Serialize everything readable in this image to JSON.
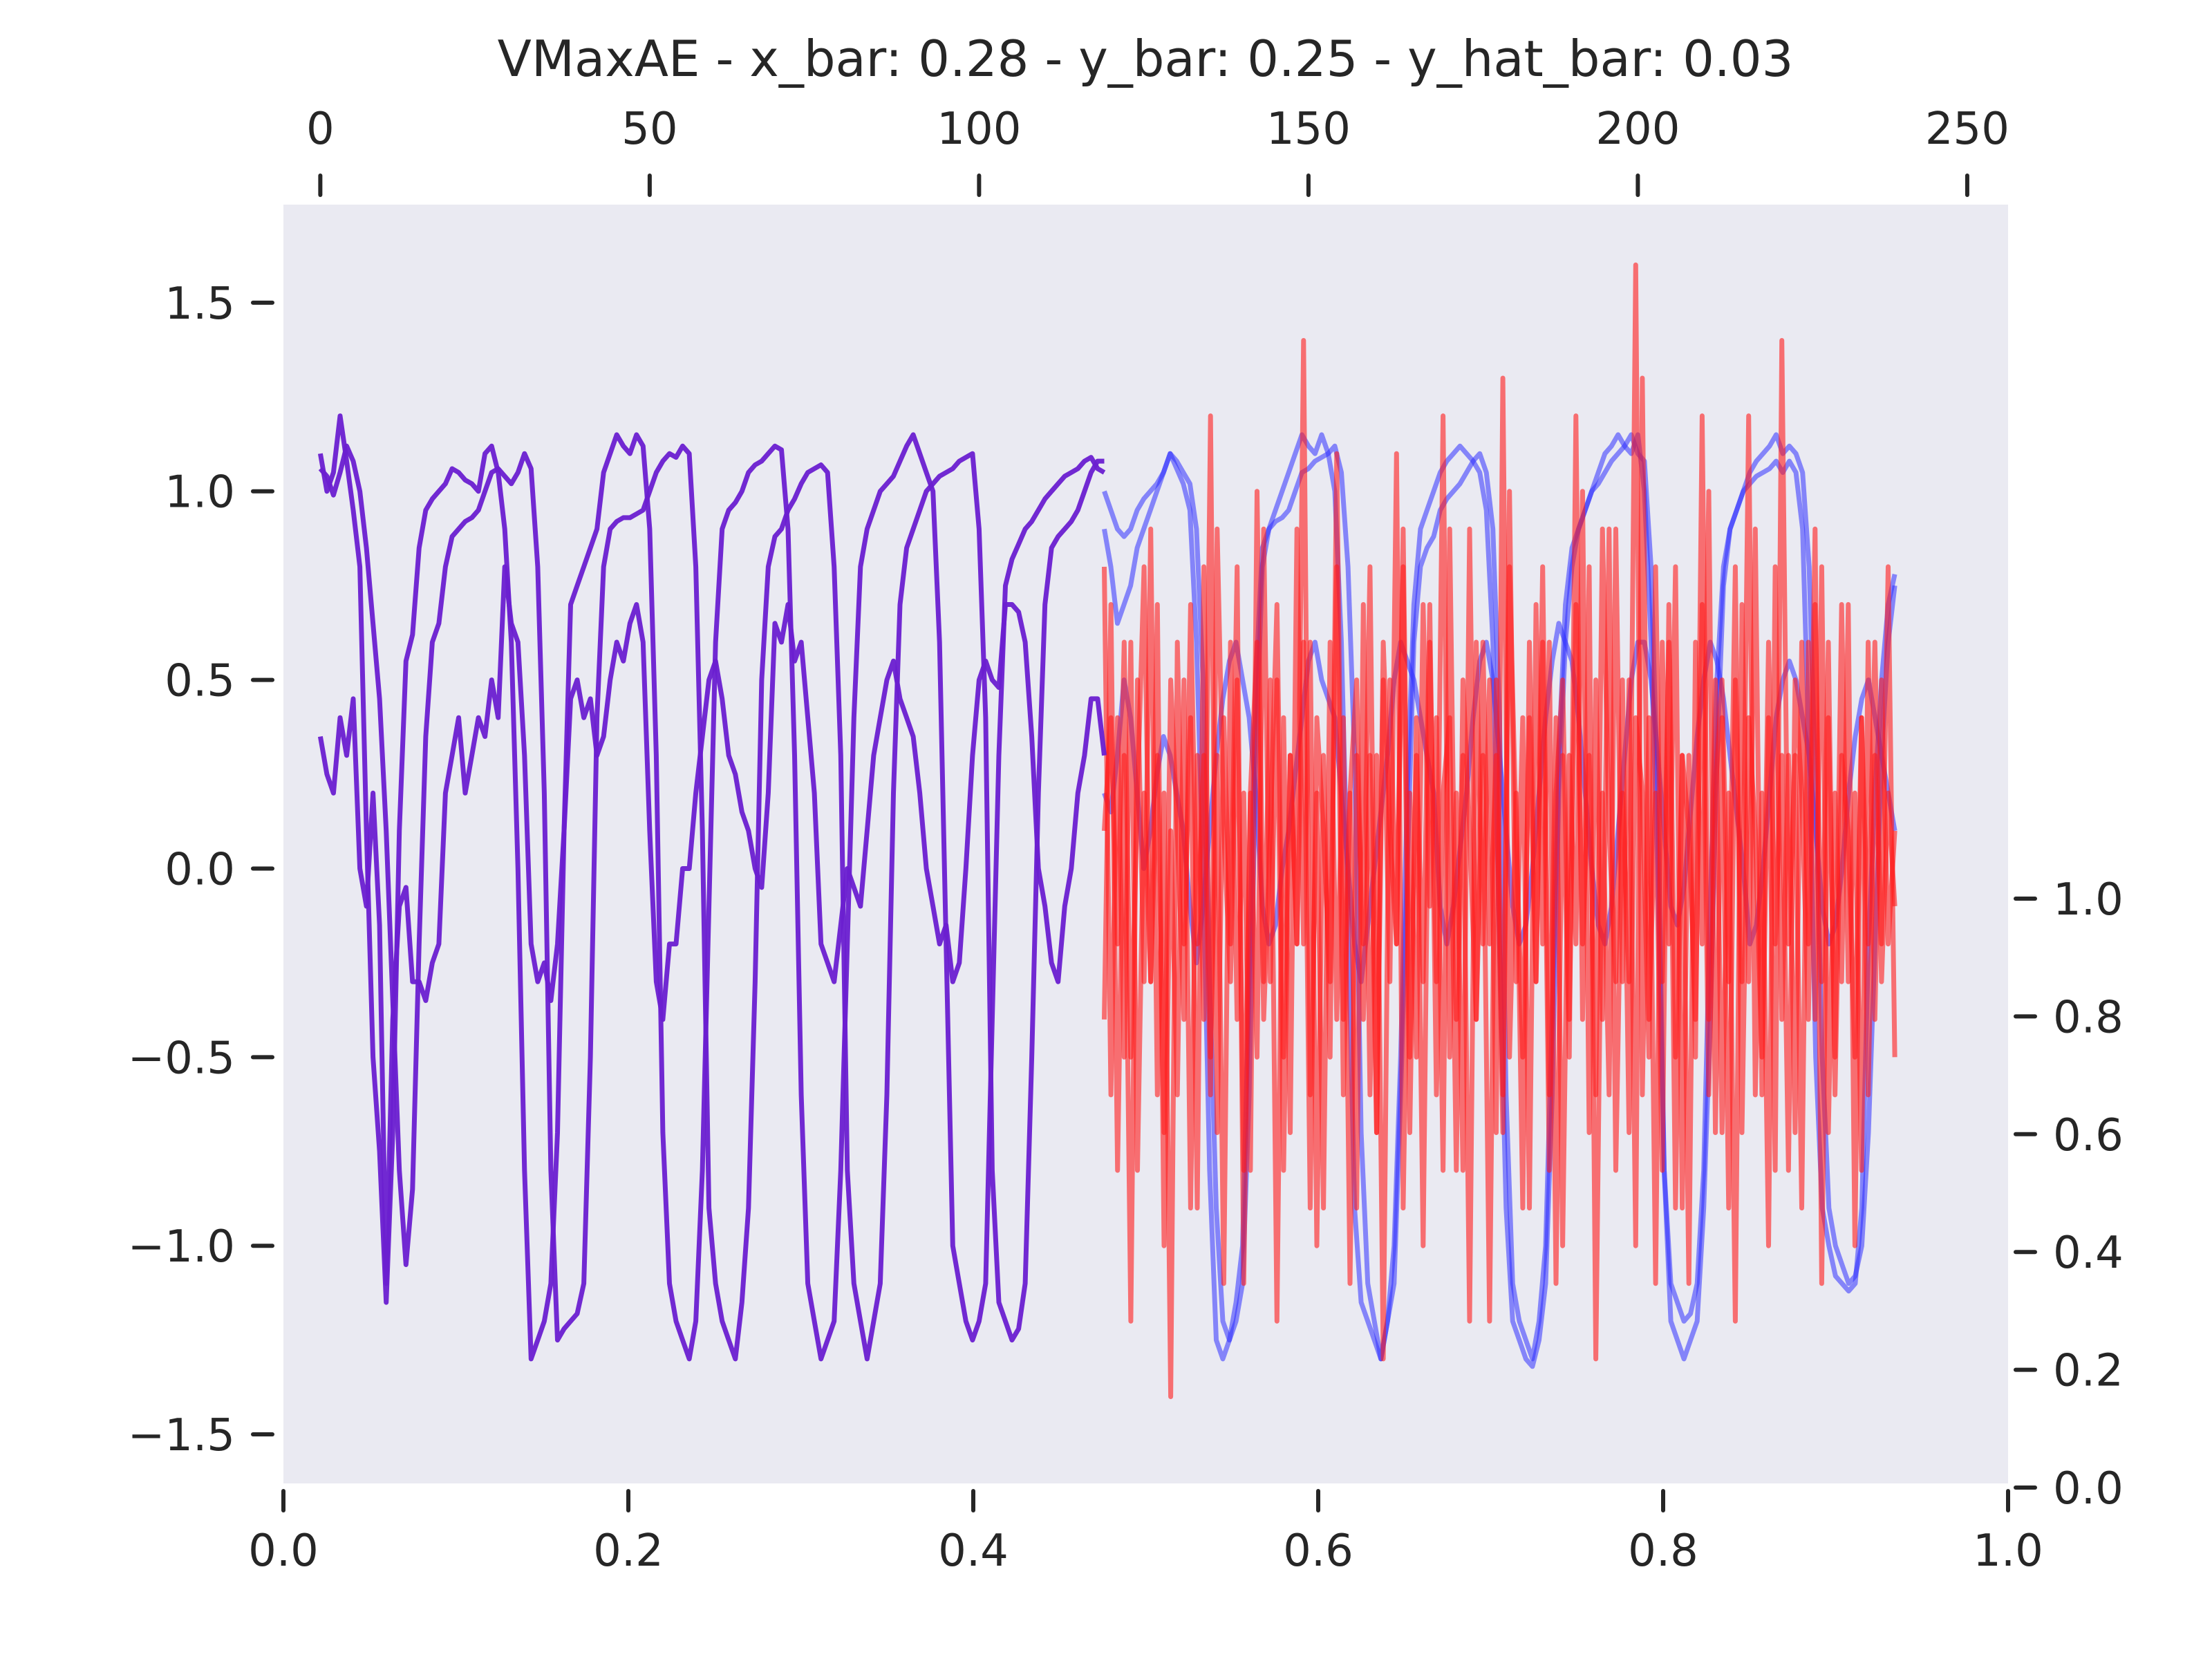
{
  "chart_data": {
    "type": "line",
    "title": "VMaxAE - x_bar: 0.28 - y_bar: 0.25 - y_hat_bar: 0.03",
    "xlabel": "",
    "ylabel": "",
    "grid": false,
    "background": "#eaeaf2",
    "colors": {
      "input": "#6a1fd0",
      "target": "#3030ff",
      "recon": "#ff1a1a"
    },
    "axes": {
      "bottom_x": {
        "range": [
          0.0,
          1.0
        ],
        "ticks": [
          "0.0",
          "0.2",
          "0.4",
          "0.6",
          "0.8",
          "1.0"
        ]
      },
      "top_x": {
        "range": [
          -5.6,
          256.2
        ],
        "ticks": [
          "0",
          "50",
          "100",
          "150",
          "200",
          "250"
        ]
      },
      "left_y": {
        "range": [
          -1.63,
          1.76
        ],
        "ticks": [
          "1.5",
          "1.0",
          "0.5",
          "0.0",
          "−0.5",
          "−1.0",
          "−1.5"
        ]
      },
      "right_y": {
        "range": [
          0.0,
          1.0
        ],
        "ticks": [
          "1.0",
          "0.8",
          "0.6",
          "0.4",
          "0.2",
          "0.0"
        ]
      }
    },
    "series": [
      {
        "role": "input",
        "x_range": [
          0,
          119
        ],
        "values": [
          1.06,
          1.04,
          0.99,
          1.05,
          1.12,
          1.08,
          1.0,
          0.85,
          0.65,
          0.45,
          0.1,
          -0.35,
          -0.8,
          -1.05,
          -0.85,
          -0.2,
          0.35,
          0.6,
          0.65,
          0.8,
          0.88,
          0.9,
          0.92,
          0.93,
          0.95,
          1.0,
          1.05,
          1.06,
          1.04,
          1.02,
          1.05,
          1.1,
          1.06,
          0.8,
          0.2,
          -0.8,
          -1.25,
          -1.22,
          -1.2,
          -1.18,
          -1.1,
          -0.5,
          0.4,
          0.8,
          0.9,
          0.92,
          0.93,
          0.93,
          0.94,
          0.95,
          1.0,
          1.05,
          1.08,
          1.1,
          1.09,
          1.12,
          1.1,
          0.8,
          0.1,
          -0.9,
          -1.1,
          -1.2,
          -1.25,
          -1.3,
          -1.15,
          -0.9,
          -0.3,
          0.5,
          0.8,
          0.88,
          0.9,
          0.95,
          0.98,
          1.02,
          1.05,
          1.06,
          1.07,
          1.05,
          0.8,
          0.3,
          -0.8,
          -1.1,
          -1.2,
          -1.3,
          -1.2,
          -1.1,
          -0.6,
          0.2,
          0.7,
          0.85,
          0.9,
          0.95,
          1.0,
          1.02,
          1.04,
          1.05,
          1.06,
          1.08,
          1.09,
          1.1,
          0.9,
          0.4,
          -0.8,
          -1.15,
          -1.2,
          -1.25,
          -1.22,
          -1.1,
          -0.5,
          0.2,
          0.7,
          0.85,
          0.88,
          0.9,
          0.92,
          0.95,
          1.0,
          1.05,
          1.08,
          1.08
        ]
      },
      {
        "role": "input",
        "x_range": [
          0,
          119
        ],
        "values": [
          1.1,
          1.0,
          1.05,
          1.2,
          1.08,
          0.95,
          0.8,
          0.1,
          -0.5,
          -0.75,
          -1.15,
          -0.7,
          0.1,
          0.55,
          0.62,
          0.85,
          0.95,
          0.98,
          1.0,
          1.02,
          1.06,
          1.05,
          1.03,
          1.02,
          1.0,
          1.1,
          1.12,
          1.05,
          0.9,
          0.6,
          0.0,
          -0.8,
          -1.3,
          -1.25,
          -1.2,
          -1.1,
          -0.7,
          0.1,
          0.7,
          0.75,
          0.8,
          0.85,
          0.9,
          1.05,
          1.1,
          1.15,
          1.12,
          1.1,
          1.15,
          1.12,
          0.9,
          0.3,
          -0.7,
          -1.1,
          -1.2,
          -1.25,
          -1.3,
          -1.2,
          -0.8,
          -0.1,
          0.6,
          0.9,
          0.95,
          0.97,
          1.0,
          1.05,
          1.07,
          1.08,
          1.1,
          1.12,
          1.11,
          0.9,
          0.3,
          -0.6,
          -1.1,
          -1.2,
          -1.3,
          -1.25,
          -1.2,
          -0.8,
          -0.2,
          0.4,
          0.8,
          0.9,
          0.95,
          1.0,
          1.02,
          1.04,
          1.08,
          1.12,
          1.15,
          1.1,
          1.05,
          1.0,
          0.6,
          -0.2,
          -1.0,
          -1.1,
          -1.2,
          -1.25,
          -1.2,
          -1.1,
          -0.4,
          0.3,
          0.75,
          0.82,
          0.86,
          0.9,
          0.92,
          0.95,
          0.98,
          1.0,
          1.02,
          1.04,
          1.05,
          1.06,
          1.08,
          1.09,
          1.06,
          1.05
        ]
      },
      {
        "role": "input",
        "x_range": [
          0,
          119
        ],
        "values": [
          0.35,
          0.25,
          0.2,
          0.4,
          0.3,
          0.45,
          0.0,
          -0.1,
          0.2,
          -0.15,
          -1.1,
          -0.4,
          -0.1,
          -0.05,
          -0.3,
          -0.3,
          -0.35,
          -0.25,
          -0.2,
          0.2,
          0.3,
          0.4,
          0.2,
          0.3,
          0.4,
          0.35,
          0.5,
          0.4,
          0.8,
          0.65,
          0.6,
          0.3,
          -0.2,
          -0.3,
          -0.25,
          -0.35,
          -0.2,
          0.1,
          0.45,
          0.5,
          0.4,
          0.45,
          0.3,
          0.35,
          0.5,
          0.6,
          0.55,
          0.65,
          0.7,
          0.6,
          0.1,
          -0.3,
          -0.4,
          -0.2,
          -0.2,
          0.0,
          0.0,
          0.2,
          0.35,
          0.5,
          0.55,
          0.45,
          0.3,
          0.25,
          0.15,
          0.1,
          0.0,
          -0.05,
          0.2,
          0.65,
          0.6,
          0.7,
          0.55,
          0.6,
          0.4,
          0.2,
          -0.2,
          -0.25,
          -0.3,
          -0.15,
          0.0,
          -0.05,
          -0.1,
          0.1,
          0.3,
          0.4,
          0.5,
          0.55,
          0.45,
          0.4,
          0.35,
          0.2,
          0.0,
          -0.1,
          -0.2,
          -0.15,
          -0.3,
          -0.25,
          0.0,
          0.3,
          0.5,
          0.55,
          0.5,
          0.48,
          0.7,
          0.7,
          0.68,
          0.6,
          0.35,
          0.0,
          -0.1,
          -0.25,
          -0.3,
          -0.1,
          0.0,
          0.2,
          0.3,
          0.45,
          0.45,
          0.3
        ]
      },
      {
        "role": "target",
        "x_range": [
          119,
          239
        ],
        "values": [
          1.0,
          0.95,
          0.9,
          0.88,
          0.9,
          0.95,
          0.98,
          1.0,
          1.02,
          1.05,
          1.1,
          1.08,
          1.05,
          1.02,
          0.9,
          0.5,
          -0.3,
          -0.9,
          -1.2,
          -1.25,
          -1.2,
          -1.1,
          -0.6,
          0.3,
          0.8,
          0.9,
          0.92,
          0.93,
          0.95,
          1.0,
          1.05,
          1.06,
          1.08,
          1.09,
          1.1,
          1.12,
          1.05,
          0.8,
          0.3,
          -0.7,
          -1.1,
          -1.2,
          -1.3,
          -1.2,
          -1.1,
          -0.6,
          0.0,
          0.6,
          0.8,
          0.85,
          0.88,
          0.95,
          0.98,
          1.0,
          1.02,
          1.05,
          1.08,
          1.1,
          1.05,
          0.9,
          0.4,
          -0.6,
          -1.1,
          -1.2,
          -1.25,
          -1.3,
          -1.2,
          -1.0,
          -0.4,
          0.3,
          0.7,
          0.85,
          0.9,
          0.95,
          1.0,
          1.02,
          1.05,
          1.08,
          1.1,
          1.12,
          1.15,
          1.1,
          1.08,
          0.8,
          0.2,
          -0.8,
          -1.1,
          -1.15,
          -1.2,
          -1.18,
          -1.1,
          -0.8,
          -0.1,
          0.5,
          0.8,
          0.9,
          0.95,
          1.0,
          1.02,
          1.04,
          1.05,
          1.06,
          1.08,
          1.05,
          1.08,
          1.05,
          0.9,
          0.3,
          -0.5,
          -0.9,
          -1.0,
          -1.08,
          -1.1,
          -1.12,
          -1.1,
          -0.9,
          -0.2,
          0.2,
          0.5,
          0.7,
          0.78
        ]
      },
      {
        "role": "target",
        "x_range": [
          119,
          239
        ],
        "values": [
          0.9,
          0.8,
          0.65,
          0.7,
          0.75,
          0.85,
          0.9,
          0.95,
          1.0,
          1.05,
          1.1,
          1.06,
          1.02,
          0.95,
          0.6,
          0.0,
          -0.8,
          -1.25,
          -1.3,
          -1.25,
          -1.15,
          -1.0,
          -0.3,
          0.5,
          0.85,
          0.9,
          0.95,
          1.0,
          1.05,
          1.1,
          1.15,
          1.12,
          1.1,
          1.15,
          1.1,
          1.0,
          0.6,
          -0.1,
          -0.9,
          -1.15,
          -1.2,
          -1.25,
          -1.3,
          -1.2,
          -1.0,
          -0.5,
          0.2,
          0.7,
          0.9,
          0.95,
          1.0,
          1.05,
          1.08,
          1.1,
          1.12,
          1.1,
          1.08,
          1.05,
          0.95,
          0.6,
          -0.2,
          -0.9,
          -1.2,
          -1.25,
          -1.3,
          -1.32,
          -1.25,
          -1.1,
          -0.6,
          0.2,
          0.6,
          0.8,
          0.9,
          0.95,
          1.0,
          1.05,
          1.1,
          1.12,
          1.15,
          1.12,
          1.1,
          1.15,
          1.0,
          0.6,
          0.0,
          -0.8,
          -1.2,
          -1.25,
          -1.3,
          -1.25,
          -1.2,
          -0.9,
          -0.4,
          0.3,
          0.75,
          0.9,
          0.95,
          1.0,
          1.05,
          1.08,
          1.1,
          1.12,
          1.15,
          1.1,
          1.12,
          1.1,
          1.05,
          0.8,
          0.2,
          -0.5,
          -0.9,
          -1.0,
          -1.05,
          -1.1,
          -1.08,
          -1.0,
          -0.7,
          -0.2,
          0.3,
          0.6,
          0.75
        ]
      },
      {
        "role": "target",
        "x_range": [
          119,
          239
        ],
        "values": [
          0.2,
          0.15,
          0.3,
          0.5,
          0.4,
          0.2,
          0.0,
          0.1,
          0.25,
          0.35,
          0.3,
          0.2,
          0.1,
          -0.1,
          -0.25,
          -0.1,
          0.1,
          0.3,
          0.45,
          0.55,
          0.6,
          0.5,
          0.4,
          0.2,
          -0.1,
          -0.2,
          -0.15,
          0.0,
          0.1,
          0.25,
          0.4,
          0.55,
          0.6,
          0.5,
          0.45,
          0.4,
          0.2,
          0.0,
          -0.2,
          -0.3,
          -0.15,
          0.0,
          0.15,
          0.3,
          0.5,
          0.6,
          0.55,
          0.5,
          0.4,
          0.3,
          0.2,
          -0.1,
          -0.2,
          -0.1,
          0.05,
          0.2,
          0.4,
          0.55,
          0.6,
          0.5,
          0.3,
          0.1,
          -0.1,
          -0.2,
          -0.15,
          0.0,
          0.2,
          0.4,
          0.55,
          0.65,
          0.6,
          0.55,
          0.4,
          0.2,
          0.0,
          -0.15,
          -0.2,
          -0.1,
          0.1,
          0.3,
          0.5,
          0.6,
          0.6,
          0.5,
          0.3,
          0.1,
          -0.1,
          -0.15,
          -0.05,
          0.15,
          0.35,
          0.5,
          0.6,
          0.55,
          0.45,
          0.3,
          0.15,
          0.0,
          -0.2,
          -0.15,
          0.0,
          0.2,
          0.4,
          0.5,
          0.55,
          0.5,
          0.4,
          0.3,
          0.1,
          -0.1,
          -0.2,
          -0.15,
          0.0,
          0.2,
          0.35,
          0.45,
          0.5,
          0.4,
          0.3,
          0.2,
          0.1
        ]
      },
      {
        "role": "recon",
        "x_range": [
          119,
          239
        ],
        "values": [
          0.8,
          -0.6,
          0.4,
          -0.5,
          0.6,
          -0.8,
          0.2,
          -0.3,
          0.7,
          -1.0,
          0.1,
          -0.6,
          0.5,
          -0.9,
          0.3,
          -0.4,
          1.2,
          -0.7,
          0.4,
          -0.2,
          0.8,
          -1.1,
          0.2,
          -0.5,
          0.9,
          -0.3,
          0.5,
          -0.8,
          0.3,
          -0.2,
          1.4,
          -0.6,
          0.2,
          -0.9,
          0.6,
          -0.4,
          0.4,
          -1.1,
          0.3,
          -0.2,
          0.8,
          -0.7,
          0.5,
          -0.3,
          1.1,
          -0.9,
          0.2,
          -0.5,
          0.7,
          -0.1,
          0.4,
          -0.8,
          0.9,
          -0.4,
          0.3,
          -1.2,
          0.6,
          -0.2,
          0.5,
          -0.7,
          1.3,
          -0.5,
          0.2,
          -0.9,
          0.6,
          -0.3,
          0.8,
          -0.6,
          0.4,
          -1.0,
          0.3,
          -0.2,
          1.0,
          -0.7,
          0.5,
          -0.4,
          0.9,
          -0.8,
          0.2,
          -0.3,
          1.6,
          -0.6,
          0.4,
          -1.1,
          0.6,
          -0.2,
          0.8,
          -0.9,
          0.3,
          -0.5,
          1.2,
          -0.4,
          0.5,
          -0.7,
          0.2,
          -1.2,
          0.7,
          -0.3,
          0.9,
          -0.6,
          0.4,
          -0.8,
          1.4,
          -0.2,
          0.3,
          -0.9,
          0.6,
          -0.4,
          0.8,
          -0.7,
          0.2,
          -0.3,
          0.7,
          -1.0,
          0.4,
          -0.6,
          0.3,
          -0.2,
          0.8,
          -0.5
        ]
      },
      {
        "role": "recon",
        "x_range": [
          119,
          239
        ],
        "values": [
          -0.4,
          0.7,
          -0.8,
          0.3,
          -1.2,
          0.5,
          -0.3,
          0.9,
          -0.6,
          0.2,
          -1.4,
          0.6,
          -0.2,
          0.4,
          -0.9,
          0.8,
          -0.5,
          0.3,
          -1.1,
          0.6,
          -0.4,
          0.2,
          -0.8,
          1.0,
          -0.3,
          0.5,
          -1.2,
          0.4,
          -0.7,
          0.9,
          -0.2,
          0.6,
          -1.0,
          0.3,
          -0.5,
          1.1,
          -0.4,
          0.2,
          -0.9,
          0.7,
          -0.6,
          0.3,
          -1.3,
          0.5,
          -0.2,
          0.8,
          -0.7,
          0.4,
          -1.0,
          0.6,
          -0.3,
          1.2,
          -0.5,
          0.2,
          -0.8,
          0.9,
          -0.4,
          0.3,
          -1.2,
          0.5,
          -0.6,
          1.0,
          -0.3,
          0.4,
          -0.9,
          0.7,
          -0.2,
          0.6,
          -1.1,
          0.3,
          -0.5,
          1.2,
          -0.4,
          0.8,
          -1.3,
          0.2,
          -0.6,
          0.9,
          -0.3,
          0.5,
          -1.0,
          1.3,
          -0.4,
          0.2,
          -0.8,
          0.7,
          -0.5,
          0.3,
          -1.1,
          0.6,
          -0.2,
          1.0,
          -0.7,
          0.4,
          -0.9,
          0.5,
          -0.3,
          1.2,
          -0.6,
          0.2,
          -1.0,
          0.8,
          -0.4,
          0.3,
          -0.7,
          0.6,
          -0.2,
          0.9,
          -1.1,
          0.4,
          -0.5,
          0.7,
          -0.3,
          0.2,
          -0.8,
          0.6,
          -0.4,
          0.5,
          -0.2,
          0.1
        ]
      },
      {
        "role": "recon",
        "x_range": [
          119,
          239
        ],
        "values": [
          0.1,
          0.4,
          -0.2,
          0.6,
          -0.5,
          0.2,
          0.8,
          -0.3,
          0.3,
          -0.7,
          0.5,
          0.1,
          -0.4,
          0.7,
          -0.2,
          0.3,
          -0.6,
          0.9,
          0.1,
          -0.3,
          0.5,
          -0.8,
          0.2,
          0.6,
          -0.4,
          0.1,
          0.7,
          -0.5,
          0.3,
          -0.2,
          0.6,
          -0.9,
          0.4,
          0.1,
          -0.3,
          0.8,
          -0.6,
          0.2,
          0.5,
          -0.4,
          0.3,
          -0.7,
          0.6,
          0.1,
          -0.2,
          0.9,
          -0.5,
          0.3,
          -0.3,
          0.7,
          -0.6,
          0.2,
          0.4,
          -0.8,
          0.5,
          0.1,
          -0.4,
          0.6,
          -0.2,
          0.3,
          -0.7,
          0.8,
          0.1,
          -0.5,
          0.4,
          -0.3,
          0.6,
          -0.8,
          0.2,
          0.5,
          -0.4,
          0.7,
          -0.2,
          0.3,
          -0.6,
          0.9,
          0.1,
          -0.3,
          0.5,
          -0.7,
          0.4,
          0.2,
          -0.5,
          0.8,
          -0.3,
          0.6,
          -0.9,
          0.3,
          0.1,
          -0.4,
          0.7,
          -0.6,
          0.2,
          0.5,
          -0.3,
          0.8,
          -0.7,
          0.4,
          0.1,
          -0.5,
          0.6,
          -0.2,
          0.3,
          -0.8,
          0.5,
          0.2,
          -0.4,
          0.7,
          -0.3,
          0.6,
          -0.6,
          0.3,
          0.1,
          -0.5,
          0.4,
          -0.2,
          0.6,
          -0.3,
          0.2,
          -0.1
        ]
      }
    ]
  }
}
